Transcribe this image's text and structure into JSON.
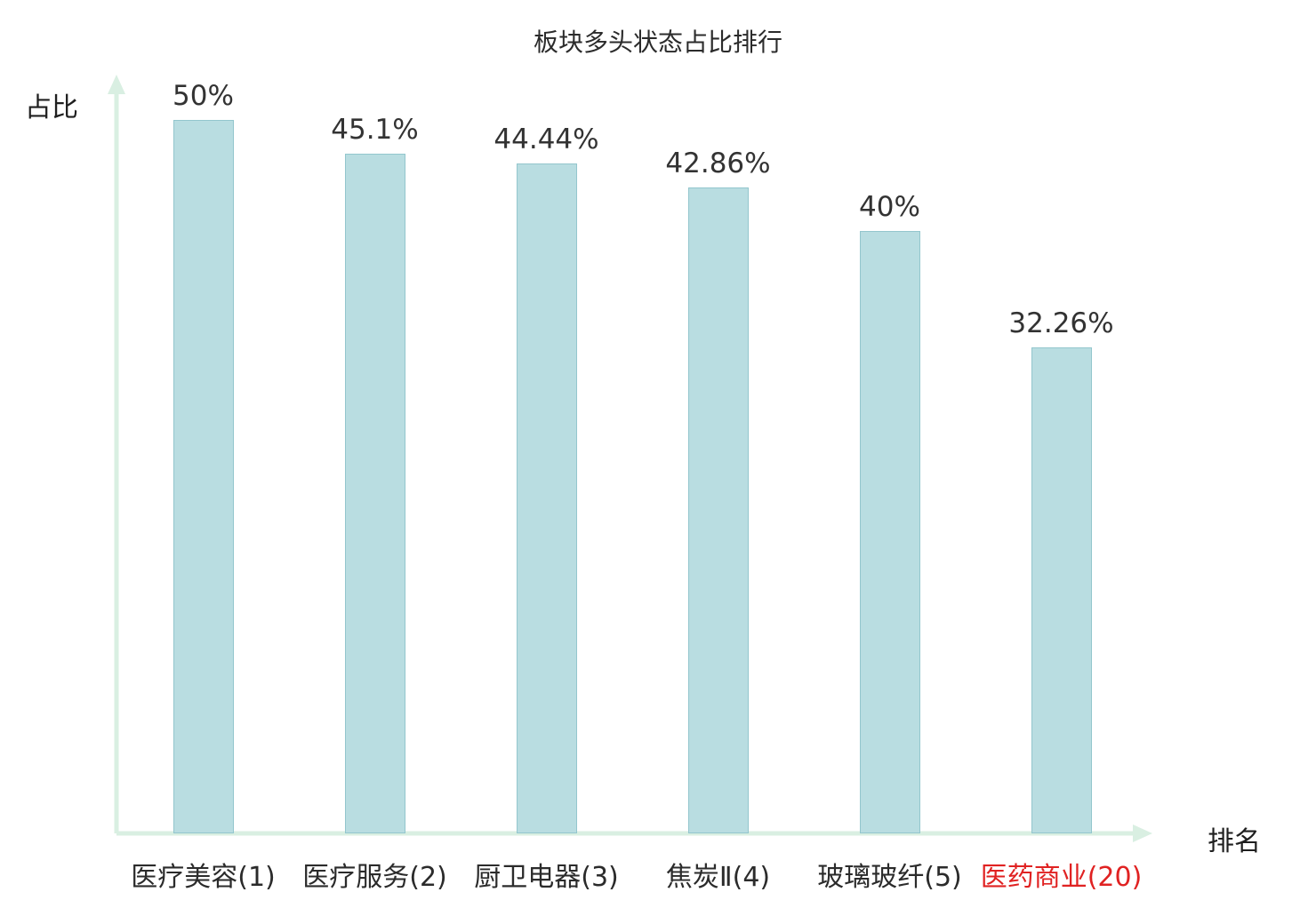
{
  "chart_data": {
    "type": "bar",
    "title": "板块多头状态占比排行",
    "ylabel": "占比",
    "xlabel": "排名",
    "categories": [
      "医疗美容(1)",
      "医疗服务(2)",
      "厨卫电器(3)",
      "焦炭Ⅱ(4)",
      "玻璃玻纤(5)",
      "医药商业(20)"
    ],
    "values": [
      50,
      45.1,
      44.44,
      42.86,
      40,
      32.26
    ],
    "value_labels": [
      "50%",
      "45.1%",
      "44.44%",
      "42.86%",
      "40%",
      "32.26%"
    ],
    "ylim": [
      0,
      50
    ],
    "grid": false,
    "legend": "none",
    "highlight_index": 5,
    "colors": {
      "bar_fill": "#b9dde1",
      "bar_border": "#93c6cd",
      "axis": "#d9efe2",
      "text": "#2b2b2b",
      "value_text": "#333333",
      "highlight_text": "#e02222",
      "background": "#ffffff"
    }
  }
}
